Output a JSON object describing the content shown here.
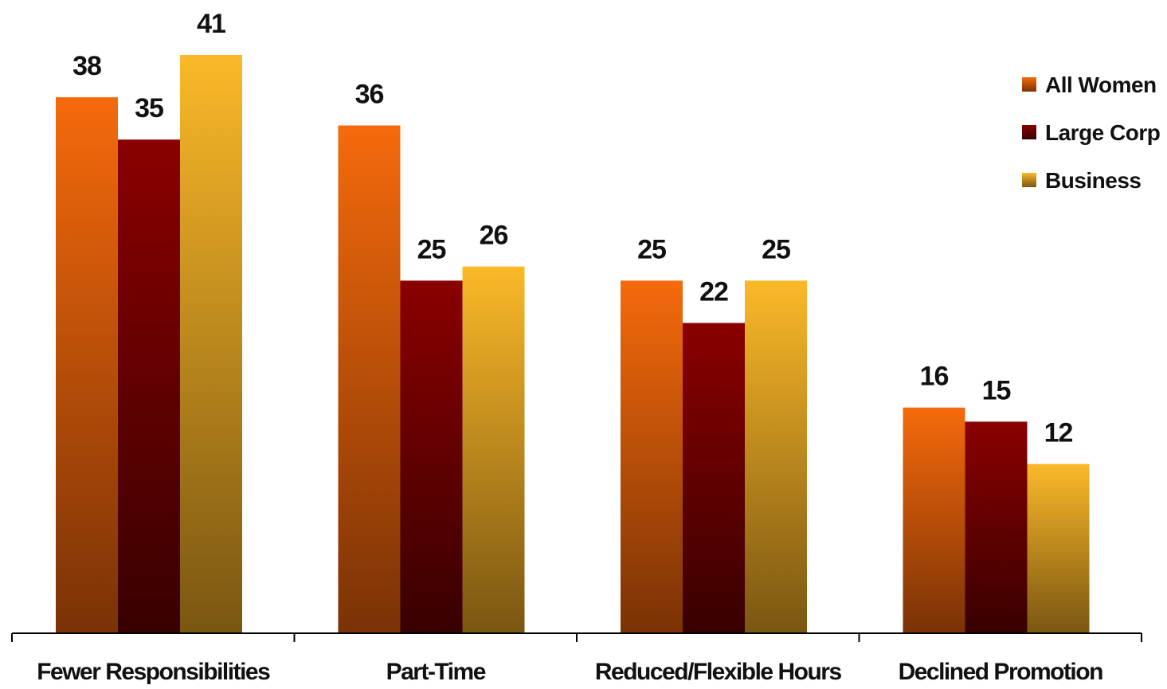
{
  "chart_data": {
    "type": "bar",
    "title": "",
    "xlabel": "",
    "ylabel": "",
    "ylim": [
      0,
      43
    ],
    "grid": false,
    "legend_position": "top-right",
    "categories": [
      "Fewer Responsibilities",
      "Part-Time",
      "Reduced/Flexible Hours",
      "Declined Promotion"
    ],
    "series": [
      {
        "name": "All Women",
        "values": [
          38,
          36,
          25,
          16
        ],
        "color_top": "#f56a0c",
        "color_bottom": "#7a3206"
      },
      {
        "name": "Large Corp",
        "values": [
          35,
          25,
          22,
          15
        ],
        "color_top": "#8a0000",
        "color_bottom": "#380000"
      },
      {
        "name": "Business",
        "values": [
          41,
          26,
          25,
          12
        ],
        "color_top": "#fbb929",
        "color_bottom": "#7a5612"
      }
    ]
  }
}
